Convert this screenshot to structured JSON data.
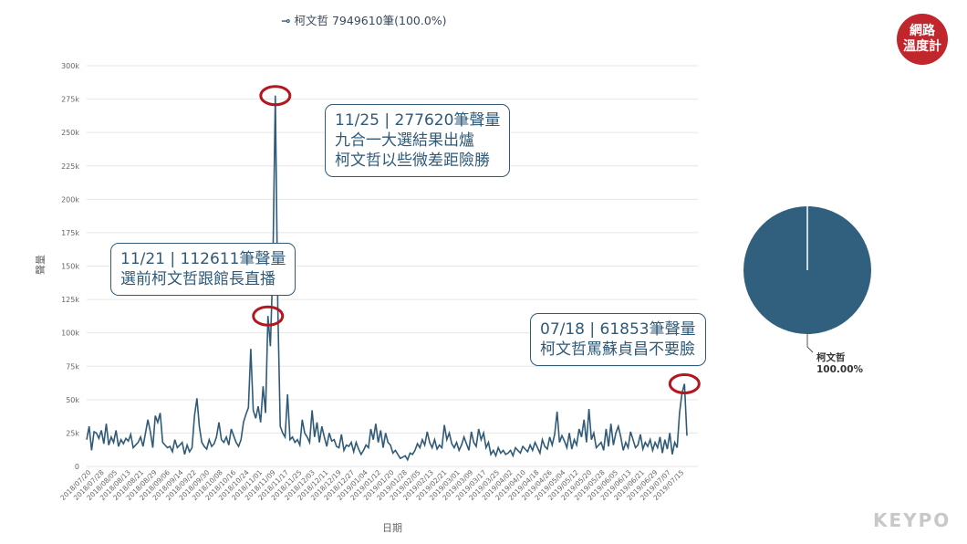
{
  "legend": {
    "marker": "⊸",
    "text": "柯文哲 7949610筆(100.0%)"
  },
  "logo": {
    "line1": "網路",
    "line2": "溫度計"
  },
  "brand": "KEYPO",
  "callouts": [
    {
      "line1": "11/25 | 277620筆聲量",
      "line2": "九合一大選結果出爐",
      "line3": "柯文哲以些微差距險勝"
    },
    {
      "line1": "11/21 | 112611筆聲量",
      "line2": "選前柯文哲跟館長直播"
    },
    {
      "line1": "07/18 | 61853筆聲量",
      "line2": "柯文哲罵蘇貞昌不要臉"
    }
  ],
  "pie": {
    "label": "柯文哲",
    "percent": "100.00%",
    "color": "#31607f"
  },
  "chart_data": {
    "type": "line",
    "xlabel": "日期",
    "ylabel": "聲量",
    "ylim": [
      0,
      300000
    ],
    "yticks": [
      "0",
      "25k",
      "50k",
      "75k",
      "100k",
      "125k",
      "150k",
      "175k",
      "200k",
      "225k",
      "250k",
      "275k",
      "300k"
    ],
    "xticks": [
      "2018/07/20",
      "2018/07/28",
      "2018/08/05",
      "2018/08/13",
      "2018/08/21",
      "2018/08/29",
      "2018/09/06",
      "2018/09/14",
      "2018/09/22",
      "2018/09/30",
      "2018/10/08",
      "2018/10/16",
      "2018/10/24",
      "2018/11/01",
      "2018/11/09",
      "2018/11/17",
      "2018/11/25",
      "2018/12/03",
      "2018/12/11",
      "2018/12/19",
      "2018/12/27",
      "2019/01/04",
      "2019/01/12",
      "2019/01/20",
      "2019/01/28",
      "2019/02/05",
      "2019/02/13",
      "2019/02/21",
      "2019/03/01",
      "2019/03/09",
      "2019/03/17",
      "2019/03/25",
      "2019/04/02",
      "2019/04/10",
      "2019/04/18",
      "2019/04/26",
      "2019/05/04",
      "2019/05/12",
      "2019/05/20",
      "2019/05/28",
      "2019/06/05",
      "2019/06/13",
      "2019/06/21",
      "2019/06/29",
      "2019/07/07",
      "2019/07/15"
    ],
    "color": "#2f5a78",
    "highlights": [
      {
        "date": "11/25",
        "value": 277620
      },
      {
        "date": "11/21",
        "value": 112611
      },
      {
        "date": "07/18",
        "value": 61853
      }
    ],
    "series": [
      {
        "name": "柯文哲",
        "values": [
          20000,
          30000,
          12000,
          26000,
          25000,
          21000,
          27000,
          17000,
          32000,
          16000,
          22000,
          18000,
          27000,
          15000,
          20000,
          17000,
          21000,
          19000,
          24000,
          14000,
          16000,
          18000,
          22000,
          15000,
          25000,
          35000,
          26000,
          14000,
          38000,
          33000,
          40000,
          18000,
          16000,
          14000,
          15000,
          11000,
          20000,
          14000,
          16000,
          18000,
          9000,
          16000,
          11000,
          14000,
          38000,
          51000,
          30000,
          18000,
          15000,
          13000,
          20000,
          15000,
          17000,
          22000,
          33000,
          20000,
          18000,
          22000,
          16000,
          28000,
          23000,
          18000,
          15000,
          20000,
          33000,
          39000,
          44000,
          88000,
          42000,
          36000,
          45000,
          33000,
          60000,
          40000,
          112611,
          90000,
          150000,
          277620,
          120000,
          30000,
          25000,
          22000,
          54000,
          20000,
          22000,
          18000,
          20000,
          16000,
          35000,
          25000,
          22000,
          18000,
          42000,
          22000,
          33000,
          18000,
          30000,
          22000,
          15000,
          25000,
          19000,
          20000,
          15000,
          14000,
          24000,
          12000,
          16000,
          15000,
          18000,
          11000,
          18000,
          13000,
          9000,
          12000,
          16000,
          14000,
          28000,
          20000,
          32000,
          18000,
          27000,
          14000,
          25000,
          18000,
          16000,
          10000,
          12000,
          9000,
          6000,
          7000,
          8000,
          5000,
          10000,
          9000,
          12000,
          17000,
          14000,
          20000,
          16000,
          26000,
          18000,
          14000,
          20000,
          13000,
          16000,
          14000,
          31000,
          20000,
          25000,
          17000,
          14000,
          18000,
          12000,
          16000,
          22000,
          17000,
          12000,
          26000,
          18000,
          15000,
          28000,
          20000,
          25000,
          14000,
          18000,
          9000,
          12000,
          8000,
          14000,
          10000,
          12000,
          9000,
          10000,
          12000,
          8000,
          14000,
          12000,
          10000,
          15000,
          13000,
          11000,
          16000,
          12000,
          18000,
          14000,
          10000,
          20000,
          15000,
          13000,
          22000,
          16000,
          24000,
          41000,
          18000,
          23000,
          19000,
          14000,
          25000,
          13000,
          20000,
          16000,
          28000,
          22000,
          35000,
          18000,
          43000,
          20000,
          25000,
          14000,
          16000,
          18000,
          12000,
          28000,
          15000,
          32000,
          16000,
          25000,
          30000,
          22000,
          12000,
          18000,
          14000,
          26000,
          20000,
          14000,
          16000,
          24000,
          13000,
          18000,
          15000,
          20000,
          12000,
          18000,
          14000,
          22000,
          10000,
          20000,
          13000,
          25000,
          9000,
          18000,
          14000,
          40000,
          55000,
          61853,
          23000
        ]
      }
    ]
  }
}
